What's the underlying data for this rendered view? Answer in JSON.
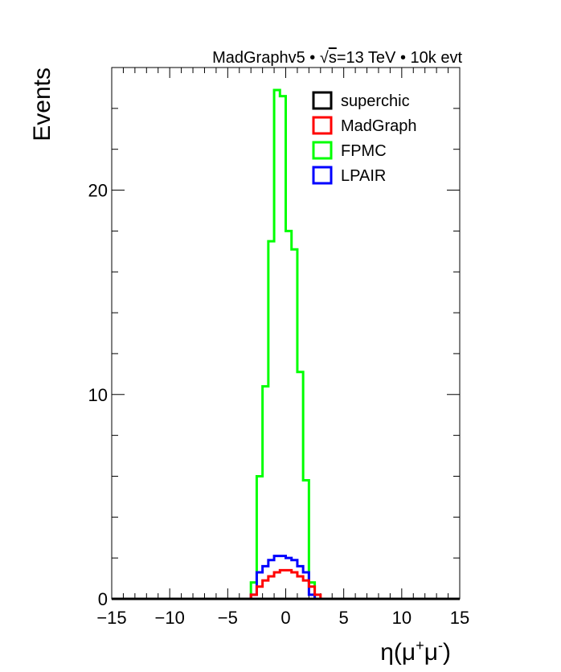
{
  "header": {
    "prefix": "MadGraphv5 • ",
    "sqrt_symbol": "√",
    "sqrt_arg": "s",
    "suffix": "=13 TeV • 10k evt"
  },
  "chart_data": {
    "type": "histogram",
    "title": "",
    "xlabel": "η(μ⁺μ⁻)",
    "xlabel_parts": {
      "base": "η(μ",
      "sup1": "+",
      "mid": "μ",
      "sup2": "-",
      "end": ")"
    },
    "ylabel": "Events",
    "xlim": [
      -15,
      15
    ],
    "ylim": [
      0,
      26
    ],
    "xticks": [
      -15,
      -10,
      -5,
      0,
      5,
      10,
      15
    ],
    "xtick_labels": [
      "−15",
      "−10",
      "−5",
      "0",
      "5",
      "10",
      "15"
    ],
    "yticks": [
      0,
      10,
      20
    ],
    "ytick_labels": [
      "0",
      "10",
      "20"
    ],
    "grid": false,
    "legend_position": "top-right",
    "bin_edges": [
      -3,
      -2.5,
      -2,
      -1.5,
      -1,
      -0.5,
      0,
      0.5,
      1,
      1.5,
      2,
      2.5,
      3
    ],
    "series": [
      {
        "name": "superchic",
        "color": "#000000",
        "values": [
          0,
          0,
          0,
          0,
          0,
          0,
          0,
          0,
          0,
          0,
          0,
          0
        ]
      },
      {
        "name": "MadGraph",
        "color": "#ff0000",
        "values": [
          0.2,
          0.6,
          0.9,
          1.1,
          1.3,
          1.4,
          1.4,
          1.3,
          1.1,
          0.9,
          0.6,
          0.2
        ]
      },
      {
        "name": "FPMC",
        "color": "#00ff00",
        "values": [
          0.8,
          6.0,
          10.4,
          17.5,
          24.9,
          24.6,
          18.0,
          17.1,
          11.1,
          5.8,
          0.8,
          0
        ]
      },
      {
        "name": "LPAIR",
        "color": "#0000ff",
        "values": [
          0.2,
          1.3,
          1.6,
          1.9,
          2.1,
          2.1,
          2.0,
          1.9,
          1.6,
          1.3,
          0.2,
          0
        ]
      }
    ]
  }
}
